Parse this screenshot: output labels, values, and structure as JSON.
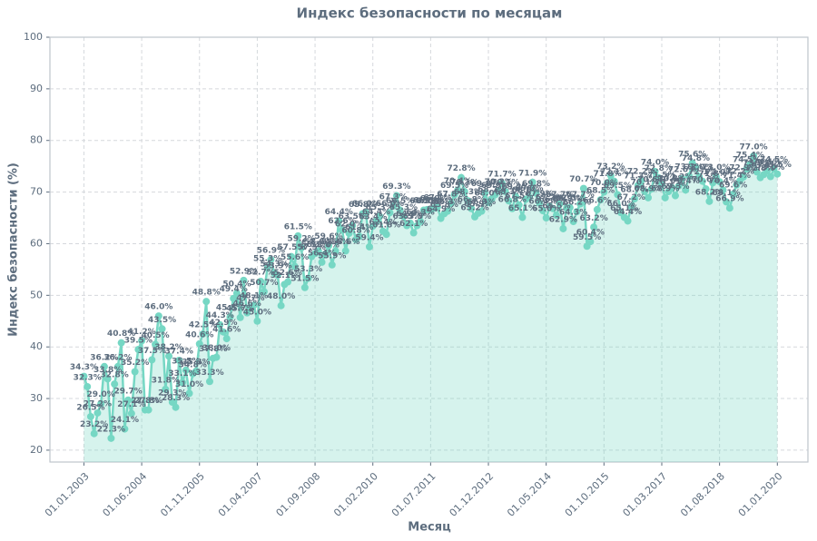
{
  "chart_data": {
    "type": "area-line",
    "title": "Индекс безопасности по месяцам",
    "x_label": "Месяц",
    "y_label": "Индекс безопасности (%)",
    "color": "#76d7c4",
    "grid": true,
    "xlim": [
      "01.03.2002",
      "01.10.2020"
    ],
    "xticks": [
      "01.01.2003",
      "01.06.2004",
      "01.11.2005",
      "01.04.2007",
      "01.09.2008",
      "01.02.2010",
      "01.07.2011",
      "01.12.2012",
      "01.05.2014",
      "01.10.2015",
      "01.03.2017",
      "01.08.2018",
      "01.01.2020"
    ],
    "ylim": [
      17.7,
      100
    ],
    "yticks": [
      20,
      30,
      40,
      50,
      60,
      70,
      80,
      90,
      100
    ],
    "x": [
      "01.01.2003",
      "01.02.2003",
      "01.03.2003",
      "01.04.2003",
      "01.05.2003",
      "01.06.2003",
      "01.07.2003",
      "01.08.2003",
      "01.09.2003",
      "01.10.2003",
      "01.11.2003",
      "01.12.2003",
      "01.01.2004",
      "01.02.2004",
      "01.03.2004",
      "01.04.2004",
      "01.05.2004",
      "01.06.2004",
      "01.07.2004",
      "01.08.2004",
      "01.09.2004",
      "01.10.2004",
      "01.11.2004",
      "01.12.2004",
      "01.01.2005",
      "01.02.2005",
      "01.03.2005",
      "01.04.2005",
      "01.05.2005",
      "01.06.2005",
      "01.07.2005",
      "01.08.2005",
      "01.09.2005",
      "01.10.2005",
      "01.11.2005",
      "01.12.2005",
      "01.01.2006",
      "01.02.2006",
      "01.03.2006",
      "01.04.2006",
      "01.05.2006",
      "01.06.2006",
      "01.07.2006",
      "01.08.2006",
      "01.09.2006",
      "01.10.2006",
      "01.11.2006",
      "01.12.2006",
      "01.01.2007",
      "01.02.2007",
      "01.03.2007",
      "01.04.2007",
      "01.05.2007",
      "01.06.2007",
      "01.07.2007",
      "01.08.2007",
      "01.09.2007",
      "01.10.2007",
      "01.11.2007",
      "01.12.2007",
      "01.01.2008",
      "01.02.2008",
      "01.03.2008",
      "01.04.2008",
      "01.05.2008",
      "01.06.2008",
      "01.07.2008",
      "01.08.2008",
      "01.09.2008",
      "01.10.2008",
      "01.11.2008",
      "01.12.2008",
      "01.01.2009",
      "01.02.2009",
      "01.03.2009",
      "01.04.2009",
      "01.05.2009",
      "01.06.2009",
      "01.07.2009",
      "01.08.2009",
      "01.09.2009",
      "01.10.2009",
      "01.11.2009",
      "01.12.2009",
      "01.01.2010",
      "01.02.2010",
      "01.03.2010",
      "01.04.2010",
      "01.05.2010",
      "01.06.2010",
      "01.07.2010",
      "01.08.2010",
      "01.09.2010",
      "01.10.2010",
      "01.11.2010",
      "01.12.2010",
      "01.01.2011",
      "01.02.2011",
      "01.03.2011",
      "01.04.2011",
      "01.05.2011",
      "01.06.2011",
      "01.07.2011",
      "01.08.2011",
      "01.09.2011",
      "01.10.2011",
      "01.11.2011",
      "01.12.2011",
      "01.01.2012",
      "01.02.2012",
      "01.03.2012",
      "01.04.2012",
      "01.05.2012",
      "01.06.2012",
      "01.07.2012",
      "01.08.2012",
      "01.09.2012",
      "01.10.2012",
      "01.11.2012",
      "01.12.2012",
      "01.01.2013",
      "01.02.2013",
      "01.03.2013",
      "01.04.2013",
      "01.05.2013",
      "01.06.2013",
      "01.07.2013",
      "01.08.2013",
      "01.09.2013",
      "01.10.2013",
      "01.11.2013",
      "01.12.2013",
      "01.01.2014",
      "01.02.2014",
      "01.03.2014",
      "01.04.2014",
      "01.05.2014",
      "01.06.2014",
      "01.07.2014",
      "01.08.2014",
      "01.09.2014",
      "01.10.2014",
      "01.11.2014",
      "01.12.2014",
      "01.01.2015",
      "01.02.2015",
      "01.03.2015",
      "01.04.2015",
      "01.05.2015",
      "01.06.2015",
      "01.07.2015",
      "01.08.2015",
      "01.09.2015",
      "01.10.2015",
      "01.11.2015",
      "01.12.2015",
      "01.01.2016",
      "01.02.2016",
      "01.03.2016",
      "01.04.2016",
      "01.05.2016",
      "01.06.2016",
      "01.07.2016",
      "01.08.2016",
      "01.09.2016",
      "01.10.2016",
      "01.11.2016",
      "01.12.2016",
      "01.01.2017",
      "01.02.2017",
      "01.03.2017",
      "01.04.2017",
      "01.05.2017",
      "01.06.2017",
      "01.07.2017",
      "01.08.2017",
      "01.09.2017",
      "01.10.2017",
      "01.11.2017",
      "01.12.2017",
      "01.01.2018",
      "01.02.2018",
      "01.03.2018",
      "01.04.2018",
      "01.05.2018",
      "01.06.2018",
      "01.07.2018",
      "01.08.2018",
      "01.09.2018",
      "01.10.2018",
      "01.11.2018",
      "01.12.2018",
      "01.01.2019",
      "01.02.2019",
      "01.03.2019",
      "01.04.2019",
      "01.05.2019",
      "01.06.2019",
      "01.07.2019",
      "01.08.2019",
      "01.09.2019",
      "01.10.2019",
      "01.11.2019",
      "01.12.2019",
      "01.01.2020"
    ],
    "values": [
      34.3,
      32.3,
      26.5,
      23.2,
      27.2,
      29.0,
      36.2,
      33.8,
      22.3,
      32.8,
      36.2,
      40.8,
      24.1,
      29.7,
      27.1,
      35.2,
      39.5,
      41.2,
      27.8,
      27.8,
      37.5,
      40.5,
      46.0,
      43.5,
      31.8,
      38.2,
      29.3,
      28.3,
      37.4,
      33.1,
      35.5,
      31.0,
      34.8,
      35.3,
      40.6,
      42.5,
      48.8,
      33.3,
      37.8,
      38.0,
      44.3,
      42.9,
      41.6,
      45.8,
      49.4,
      50.4,
      45.7,
      52.9,
      46.6,
      47.7,
      48.1,
      45.0,
      52.7,
      50.7,
      55.3,
      56.9,
      54.3,
      53.9,
      48.0,
      52.1,
      52.6,
      57.5,
      55.6,
      61.5,
      59.2,
      51.5,
      53.3,
      57.5,
      58.1,
      58.6,
      56.4,
      58.0,
      59.6,
      55.9,
      58.6,
      64.4,
      62.6,
      58.6,
      62.0,
      63.5,
      60.8,
      61.4,
      65.8,
      66.0,
      59.4,
      63.4,
      64.4,
      65.3,
      62.4,
      61.8,
      66.0,
      67.3,
      69.3,
      66.5,
      65.3,
      63.5,
      64.0,
      62.1,
      63.5,
      64.3,
      66.5,
      66.6,
      66.5,
      66.9,
      67.1,
      64.9,
      65.8,
      66.3,
      67.8,
      69.5,
      70.4,
      72.8,
      70.1,
      68.3,
      66.8,
      65.2,
      65.9,
      66.3,
      69.8,
      68.0,
      68.7,
      69.5,
      70.2,
      71.7,
      70.1,
      68.3,
      66.8,
      69.2,
      67.5,
      65.1,
      68.6,
      69.0,
      71.9,
      69.8,
      67.9,
      66.4,
      65.0,
      67.2,
      66.8,
      65.5,
      67.7,
      62.9,
      66.9,
      67.0,
      64.3,
      66.2,
      67.7,
      70.7,
      59.5,
      60.4,
      63.2,
      66.6,
      68.5,
      70.0,
      71.8,
      73.2,
      72.1,
      69.5,
      66.0,
      65.1,
      64.4,
      67.2,
      68.7,
      71.3,
      72.2,
      70.1,
      68.9,
      70.6,
      74.0,
      72.8,
      71.5,
      68.9,
      70.1,
      70.8,
      69.3,
      71.2,
      72.6,
      70.4,
      73.1,
      75.6,
      74.8,
      73.0,
      72.1,
      70.6,
      68.2,
      71.8,
      73.0,
      72.0,
      70.4,
      68.1,
      66.9,
      69.6,
      71.4,
      72.2,
      72.9,
      74.5,
      75.4,
      77.0,
      73.9,
      72.8,
      73.4,
      74.1,
      73.0,
      74.5,
      73.5
    ],
    "value_labels": [
      "34.3%",
      "32.3%",
      "26.5%",
      "23.2%",
      "27.2%",
      "29.0%",
      "36.2%",
      "33.8%",
      "22.3%",
      "32.8%",
      "36.2%",
      "40.8%",
      "24.1%",
      "29.7%",
      "27.1%",
      "35.2%",
      "39.5%",
      "41.2%",
      "27.8%",
      "27.8%",
      "37.5%",
      "40.5%",
      "46.0%",
      "43.5%",
      "31.8%",
      "38.2%",
      "29.3%",
      "28.3%",
      "37.4%",
      "33.1%",
      "35.5%",
      "31.0%",
      "34.8%",
      "35.3%",
      "40.6%",
      "42.5%",
      "48.8%",
      "33.3%",
      "37.8%",
      "38.0%",
      "44.3%",
      "42.9%",
      "41.6%",
      "45.8%",
      "49.4%",
      "50.4%",
      "45.7%",
      "52.9%",
      "46.6%",
      "47.7%",
      "48.1%",
      "45.0%",
      "52.7%",
      "50.7%",
      "55.3%",
      "56.9%",
      "54.3%",
      "53.9%",
      "48.0%",
      "52.1%",
      "52.6%",
      "57.5%",
      "55.6%",
      "61.5%",
      "59.2%",
      "51.5%",
      "53.3%",
      "57.5%",
      "58.1%",
      "58.6%",
      "56.4%",
      "58.0%",
      "59.6%",
      "55.9%",
      "58.6%",
      "64.4%",
      "62.6%",
      "58.6%",
      "62.0%",
      "63.5%",
      "60.8%",
      "61.4%",
      "65.8%",
      "66.0%",
      "59.4%",
      "63.4%",
      "64.4%",
      "65.3%",
      "62.4%",
      "61.8%",
      "66.0%",
      "67.3%",
      "69.3%",
      "66.5%",
      "65.3%",
      "63.5%",
      "64.0%",
      "62.1%",
      "63.5%",
      "64.3%",
      "66.5%",
      "66.6%",
      "66.5%",
      "66.9%",
      "67.1%",
      "64.9%",
      "65.8%",
      "66.3%",
      "67.8%",
      "69.5%",
      "70.4%",
      "72.8%",
      "70.1%",
      "68.3%",
      "66.8%",
      "65.2%",
      "65.9%",
      "66.3%",
      "69.8%",
      "68.0%",
      "68.7%",
      "69.5%",
      "70.2%",
      "71.7%",
      "70.1%",
      "68.3%",
      "66.8%",
      "69.2%",
      "67.5%",
      "65.1%",
      "68.6%",
      "69.0%",
      "71.9%",
      "69.8%",
      "67.9%",
      "66.4%",
      "65.0%",
      "67.2%",
      "66.8%",
      "65.5%",
      "67.7%",
      "62.9%",
      "66.9%",
      "67.0%",
      "64.3%",
      "66.2%",
      "67.7%",
      "70.7%",
      "59.5%",
      "60.4%",
      "63.2%",
      "66.6%",
      "68.5%",
      "70.0%",
      "71.8%",
      "73.2%",
      "72.1%",
      "69.5%",
      "66.0%",
      "65.1%",
      "64.4%",
      "67.2%",
      "68.7%",
      "71.3%",
      "72.2%",
      "70.1%",
      "68.9%",
      "70.6%",
      "74.0%",
      "72.8%",
      "71.5%",
      "68.9%",
      "70.1%",
      "70.8%",
      "69.3%",
      "71.2%",
      "72.6%",
      "70.4%",
      "73.1%",
      "75.6%",
      "74.8%",
      "73.0%",
      "72.1%",
      "70.6%",
      "68.2%",
      "71.8%",
      "73.0%",
      "72.0%",
      "70.4%",
      "68.1%",
      "66.9%",
      "69.6%",
      "71.4%",
      "72.2%",
      "72.9%",
      "74.5%",
      "75.4%",
      "77.0%",
      "73.9%",
      "72.8%",
      "73.4%",
      "74.1%",
      "73.0%",
      "74.5%",
      "73.5%"
    ]
  }
}
